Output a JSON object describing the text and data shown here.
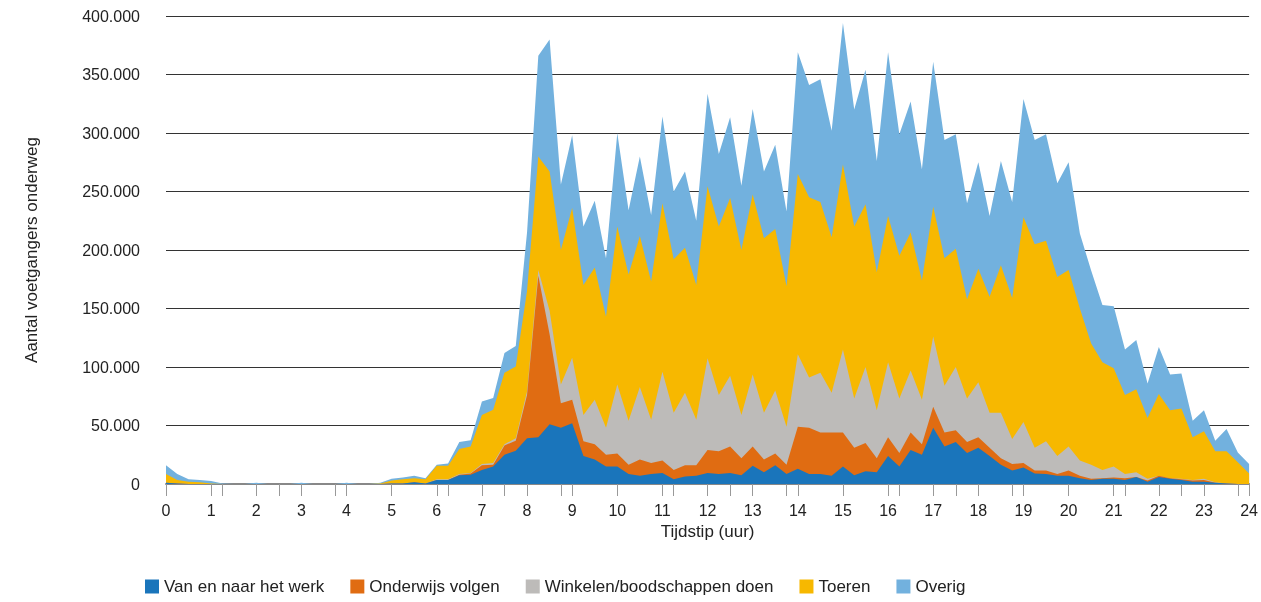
{
  "chart_data": {
    "type": "area",
    "stacked": true,
    "xlabel": "Tijdstip (uur)",
    "ylabel": "Aantal voetgangers onderweg",
    "x": [
      0,
      0.25,
      0.5,
      0.75,
      1,
      1.25,
      1.5,
      1.75,
      2,
      2.25,
      2.5,
      2.75,
      3,
      3.25,
      3.5,
      3.75,
      4,
      4.25,
      4.5,
      4.75,
      5,
      5.25,
      5.5,
      5.75,
      6,
      6.25,
      6.5,
      6.75,
      7,
      7.25,
      7.5,
      7.75,
      8,
      8.25,
      8.5,
      8.75,
      9,
      9.25,
      9.5,
      9.75,
      10,
      10.25,
      10.5,
      10.75,
      11,
      11.25,
      11.5,
      11.75,
      12,
      12.25,
      12.5,
      12.75,
      13,
      13.25,
      13.5,
      13.75,
      14,
      14.25,
      14.5,
      14.75,
      15,
      15.25,
      15.5,
      15.75,
      16,
      16.25,
      16.5,
      16.75,
      17,
      17.25,
      17.5,
      17.75,
      18,
      18.25,
      18.5,
      18.75,
      19,
      19.25,
      19.5,
      19.75,
      20,
      20.25,
      20.5,
      20.75,
      21,
      21.25,
      21.5,
      21.75,
      22,
      22.25,
      22.5,
      22.75,
      23,
      23.25,
      23.5,
      23.75,
      24
    ],
    "series": [
      {
        "name": "Van en naar het werk",
        "color": "#1a75bb",
        "values": [
          1000,
          500,
          0,
          0,
          0,
          0,
          0,
          0,
          0,
          0,
          0,
          0,
          0,
          0,
          0,
          0,
          0,
          0,
          0,
          0,
          500,
          500,
          1500,
          500,
          3500,
          3500,
          7500,
          8000,
          12000,
          15000,
          25000,
          28500,
          39000,
          40000,
          51000,
          48000,
          52000,
          24000,
          21000,
          15000,
          15000,
          8500,
          7000,
          8500,
          9500,
          4000,
          6500,
          7000,
          9500,
          8500,
          9500,
          7500,
          15500,
          10000,
          16000,
          8500,
          13000,
          8500,
          8500,
          7000,
          15000,
          7500,
          11000,
          10000,
          24000,
          15000,
          29000,
          25000,
          48000,
          32000,
          36000,
          26500,
          31000,
          24000,
          16500,
          11500,
          14000,
          9000,
          8500,
          7000,
          7000,
          5000,
          3500,
          4500,
          4500,
          3500,
          6000,
          2000,
          6000,
          4500,
          3500,
          2000,
          2000,
          1000,
          500,
          0,
          0
        ]
      },
      {
        "name": "Onderwijs volgen",
        "color": "#e06c12",
        "values": [
          0,
          0,
          0,
          0,
          0,
          0,
          0,
          0,
          0,
          0,
          0,
          0,
          0,
          0,
          0,
          0,
          0,
          0,
          0,
          0,
          0,
          0,
          0,
          0,
          0,
          0,
          500,
          1000,
          4000,
          1500,
          8000,
          8500,
          37000,
          138000,
          77000,
          21000,
          20000,
          12500,
          13000,
          10000,
          11000,
          8000,
          14000,
          9500,
          10500,
          8000,
          9500,
          9000,
          19500,
          19500,
          22500,
          14500,
          16500,
          11000,
          10000,
          8000,
          36000,
          39500,
          35500,
          37000,
          29000,
          23500,
          24000,
          12000,
          16000,
          11500,
          15000,
          9000,
          18000,
          12000,
          10000,
          9500,
          9000,
          7000,
          5500,
          5500,
          4000,
          2500,
          3000,
          1500,
          4500,
          2000,
          1000,
          500,
          1000,
          1500,
          0,
          1000,
          1000,
          500,
          500,
          1000,
          1500,
          0,
          0,
          0,
          0
        ]
      },
      {
        "name": "Winkelen/boodschappen doen",
        "color": "#bdbbb9",
        "values": [
          0,
          0,
          0,
          0,
          0,
          0,
          0,
          0,
          0,
          0,
          0,
          0,
          0,
          0,
          0,
          0,
          0,
          0,
          0,
          0,
          0,
          0,
          0,
          0,
          500,
          500,
          500,
          500,
          1000,
          1500,
          1000,
          2000,
          3000,
          5000,
          20000,
          16000,
          36000,
          22500,
          38000,
          23000,
          59000,
          37500,
          62000,
          37000,
          76000,
          49000,
          62000,
          39000,
          78500,
          48000,
          60500,
          37000,
          61500,
          40000,
          54000,
          32500,
          62000,
          43000,
          51000,
          34000,
          71000,
          42000,
          65000,
          41000,
          64000,
          46500,
          53000,
          38000,
          60000,
          40000,
          54000,
          37000,
          47000,
          30000,
          39000,
          21500,
          35000,
          19500,
          25000,
          15500,
          20500,
          13000,
          12000,
          7000,
          9500,
          3500,
          4000,
          1500,
          0,
          0,
          500,
          500,
          1000,
          500,
          0,
          0,
          0
        ]
      },
      {
        "name": "Toeren",
        "color": "#f7b800",
        "values": [
          7500,
          3000,
          2000,
          1500,
          500,
          0,
          0,
          0,
          0,
          0,
          0,
          0,
          0,
          0,
          0,
          0,
          0,
          0,
          0,
          500,
          2500,
          3500,
          3500,
          3500,
          11500,
          11500,
          21500,
          22500,
          42000,
          45500,
          61000,
          61500,
          86000,
          97000,
          119000,
          115000,
          128000,
          111000,
          113000,
          95000,
          135000,
          125000,
          129000,
          118000,
          144000,
          131000,
          124000,
          115000,
          147000,
          144000,
          152000,
          141000,
          154000,
          149000,
          138000,
          120000,
          154000,
          154000,
          146000,
          133000,
          158000,
          147000,
          139000,
          118000,
          125000,
          122000,
          118000,
          102000,
          111000,
          109000,
          101000,
          85000,
          97000,
          99000,
          126000,
          120500,
          175000,
          174000,
          171500,
          153000,
          151000,
          130000,
          103500,
          92000,
          84000,
          67500,
          71000,
          52000,
          70000,
          58000,
          60000,
          36500,
          40500,
          26500,
          27500,
          18500,
          9000
        ]
      },
      {
        "name": "Overig",
        "color": "#72b1de",
        "values": [
          7500,
          5000,
          2000,
          2000,
          2000,
          500,
          0,
          0,
          1000,
          0,
          0,
          0,
          1000,
          0,
          0,
          0,
          1000,
          0,
          0,
          500,
          1500,
          1500,
          2000,
          1000,
          1000,
          2000,
          6000,
          5500,
          11500,
          10000,
          17000,
          17500,
          50000,
          86000,
          113000,
          56000,
          62000,
          50000,
          57000,
          50000,
          80000,
          55000,
          68000,
          57000,
          74000,
          58000,
          65000,
          55000,
          79000,
          62000,
          69000,
          55000,
          73000,
          57000,
          72000,
          64000,
          104000,
          96000,
          105000,
          91000,
          121000,
          100000,
          115000,
          95000,
          140000,
          104000,
          112000,
          95000,
          124000,
          101000,
          98000,
          82000,
          91000,
          69000,
          89000,
          82000,
          101000,
          89000,
          91000,
          80000,
          92000,
          64000,
          62500,
          49000,
          53000,
          39000,
          42000,
          29500,
          40000,
          30500,
          30000,
          14000,
          18000,
          9000,
          19000,
          8500,
          8000
        ]
      }
    ],
    "xlim": [
      0,
      24
    ],
    "xticks": [
      0,
      1,
      2,
      3,
      4,
      5,
      6,
      7,
      8,
      9,
      10,
      11,
      12,
      13,
      14,
      15,
      16,
      17,
      18,
      19,
      20,
      21,
      22,
      23,
      24
    ],
    "ylim": [
      0,
      400000
    ],
    "yticks": [
      {
        "value": 0,
        "label": "0"
      },
      {
        "value": 50000,
        "label": "50.000"
      },
      {
        "value": 100000,
        "label": "100.000"
      },
      {
        "value": 150000,
        "label": "150.000"
      },
      {
        "value": 200000,
        "label": "200.000"
      },
      {
        "value": 250000,
        "label": "250.000"
      },
      {
        "value": 300000,
        "label": "300.000"
      },
      {
        "value": 350000,
        "label": "350.000"
      },
      {
        "value": 400000,
        "label": "400.000"
      }
    ],
    "grid": "y",
    "legend": "bottom"
  }
}
